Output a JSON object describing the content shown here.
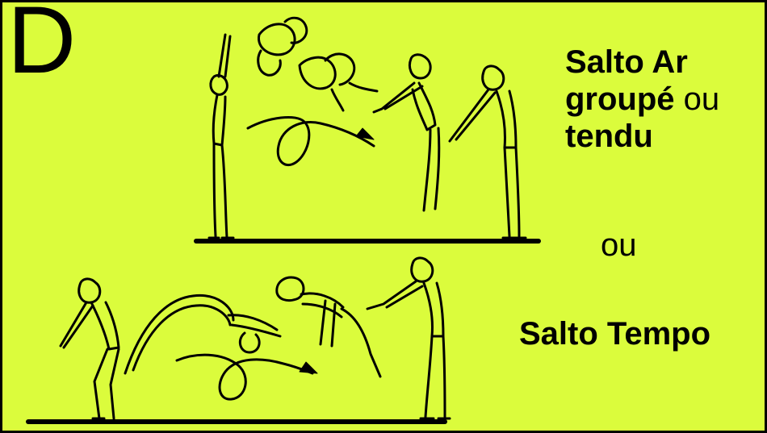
{
  "panel": {
    "letter": "D",
    "background_color": "#dbfc3c",
    "caption_top": {
      "line1": "Salto Ar",
      "line2_bold": "groupé",
      "line2_normal": " ou",
      "line3": "tendu"
    },
    "separator": "ou",
    "caption_bottom": "Salto Tempo"
  },
  "icons": {
    "top_sequence": "salto-groupe-sequence-illustration",
    "bottom_sequence": "salto-tempo-sequence-illustration",
    "motion_arrow": "rotation-arrow-icon"
  }
}
